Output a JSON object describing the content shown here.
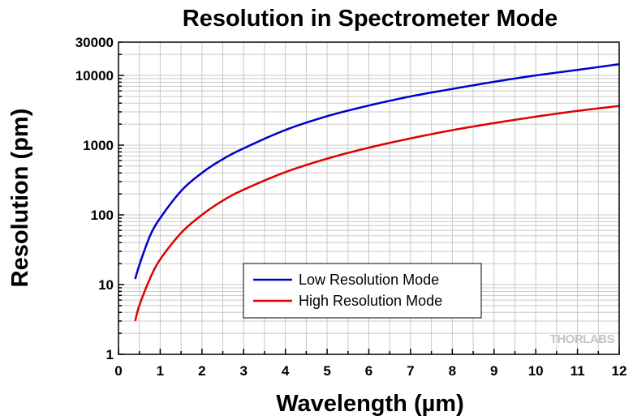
{
  "chart_data": {
    "type": "line",
    "title": "Resolution in Spectrometer Mode",
    "xlabel": "Wavelength (µm)",
    "ylabel": "Resolution (pm)",
    "xlim": [
      0,
      12
    ],
    "ylim": [
      1,
      30000
    ],
    "y_scale": "log",
    "grid": true,
    "legend_position": "center",
    "x_ticks": [
      "0",
      "1",
      "2",
      "3",
      "4",
      "5",
      "6",
      "7",
      "8",
      "9",
      "10",
      "11",
      "12"
    ],
    "y_ticks": [
      {
        "value": 1,
        "label": "1"
      },
      {
        "value": 10,
        "label": "10"
      },
      {
        "value": 100,
        "label": "100"
      },
      {
        "value": 1000,
        "label": "1000"
      },
      {
        "value": 10000,
        "label": "10000"
      },
      {
        "value": 30000,
        "label": "30000"
      }
    ],
    "x": [
      0.4,
      0.5,
      0.75,
      1,
      1.5,
      2,
      2.5,
      3,
      4,
      5,
      6,
      7,
      8,
      9,
      10,
      11,
      12
    ],
    "series": [
      {
        "name": "Low Resolution Mode",
        "color": "#0000cc",
        "values": [
          12,
          19,
          49,
          90,
          220,
          400,
          630,
          900,
          1650,
          2600,
          3700,
          5000,
          6400,
          8100,
          10000,
          12000,
          14500
        ]
      },
      {
        "name": "High Resolution Mode",
        "color": "#dd0000",
        "values": [
          3,
          5,
          12,
          23,
          55,
          100,
          160,
          230,
          410,
          640,
          920,
          1250,
          1640,
          2070,
          2560,
          3100,
          3650
        ]
      }
    ]
  },
  "watermark": "THORLABS"
}
